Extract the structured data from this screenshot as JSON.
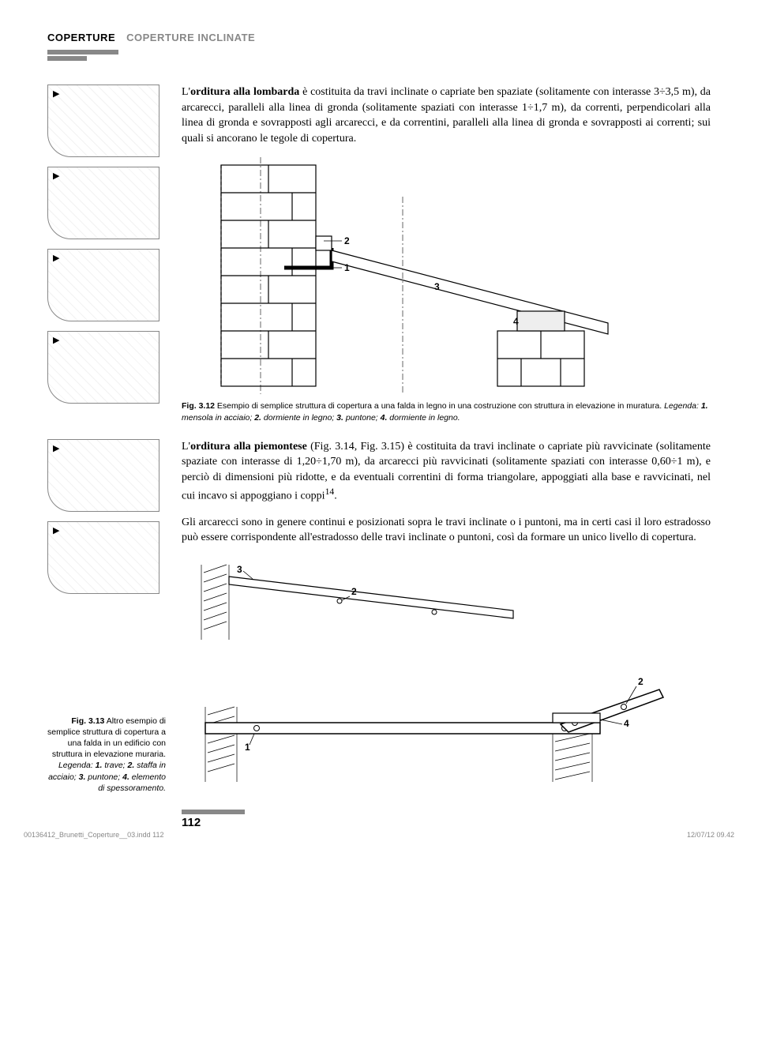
{
  "header": {
    "main": "COPERTURE",
    "sub": "COPERTURE INCLINATE"
  },
  "para1_html": "L'<b>orditura alla lombarda</b> è costituita da travi inclinate o capriate ben spaziate (solitamente con interasse 3÷3,5 m), da arcarecci, paralleli alla linea di gronda (solitamente spaziati con interasse 1÷1,7 m), da correnti, perpendicolari alla linea di gronda e sovrapposti agli arcarecci, e da correntini, paralleli alla linea di gronda e sovrapposti ai correnti; sui quali si ancorano le tegole di copertura.",
  "fig312": {
    "label": "Fig. 3.12",
    "desc": " Esempio di semplice struttura di copertura a una falda in legno in una costruzione con struttura in elevazione in muratura.",
    "legend_intro": " Legenda: ",
    "legend": "<b>1.</b> mensola in acciaio; <b>2.</b> dormiente in legno; <b>3.</b> puntone; <b>4.</b> dormiente in legno.",
    "nums": {
      "n1": "1",
      "n2": "2",
      "n3": "3",
      "n4": "4"
    }
  },
  "para2_html": "L'<b>orditura alla piemontese</b> (Fig. 3.14, Fig. 3.15) è costituita da travi inclinate o capriate più ravvicinate (solitamente spaziate con interasse di 1,20÷1,70 m), da arcarecci più ravvicinati (solitamente spaziati con interasse 0,60÷1 m), e perciò di dimensioni più ridotte, e da eventuali correntini di forma triangolare, appoggiati alla base e ravvicinati, nel cui incavo si appoggiano i coppi<sup>14</sup>.",
  "para3": "Gli arcarecci sono in genere continui e posizionati sopra le travi inclinate o i puntoni, ma in certi casi il loro estradosso può essere corrispondente all'estradosso delle travi inclinate o puntoni, così da formare un unico livello di copertura.",
  "fig313": {
    "label": "Fig. 3.13",
    "desc": " Altro esempio di semplice struttura di copertura a una falda in un edificio con struttura in elevazione muraria.",
    "legend_intro": " Legenda: ",
    "legend": "<b>1.</b> trave; <b>2.</b> staffa in acciaio; <b>3.</b> puntone; <b>4.</b> elemento di spessoramento.",
    "nums": {
      "n1": "1",
      "n2": "2",
      "n3": "3",
      "n4": "4"
    }
  },
  "page_number": "112",
  "footer": {
    "file": "00136412_Brunetti_Coperture__03.indd   112",
    "datetime": "12/07/12   09.42"
  },
  "colors": {
    "gray": "#888888",
    "black": "#000000",
    "white": "#ffffff"
  }
}
